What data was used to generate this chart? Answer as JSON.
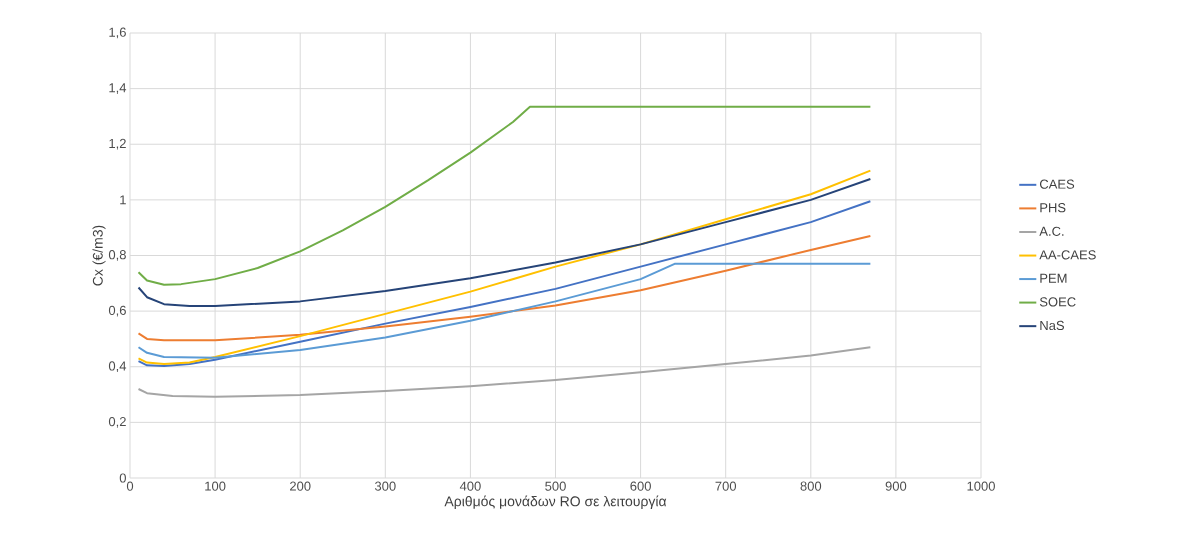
{
  "chart_data": {
    "type": "line",
    "xlabel": "Αριθμός μονάδων RO σε λειτουργία",
    "ylabel": "Cx  (€/m3)",
    "xlim": [
      0,
      1000
    ],
    "xticks": [
      0,
      100,
      200,
      300,
      400,
      500,
      600,
      700,
      800,
      900,
      1000
    ],
    "ylim": [
      0,
      1.6
    ],
    "yticks": [
      0,
      {
        "value": 0.2,
        "label": "0,2"
      },
      {
        "value": 0.4,
        "label": "0,4"
      },
      {
        "value": 0.6,
        "label": "0,6"
      },
      {
        "value": 0.8,
        "label": "0,8"
      },
      1,
      {
        "value": 1.2,
        "label": "1,2"
      },
      {
        "value": 1.4,
        "label": "1,4"
      },
      {
        "value": 1.6,
        "label": "1,6"
      }
    ],
    "grid": true,
    "legend": "right",
    "marker": "none",
    "line_style": "solid",
    "series": [
      {
        "name": "CAES",
        "color": "#4472c4",
        "x": [
          10,
          20,
          40,
          70,
          100,
          200,
          300,
          400,
          500,
          600,
          700,
          800,
          870
        ],
        "values": [
          0.42,
          0.405,
          0.403,
          0.41,
          0.425,
          0.49,
          0.555,
          0.615,
          0.68,
          0.76,
          0.84,
          0.92,
          0.995
        ]
      },
      {
        "name": "PHS",
        "color": "#ed7d31",
        "x": [
          10,
          20,
          40,
          100,
          200,
          300,
          400,
          500,
          600,
          700,
          800,
          870
        ],
        "values": [
          0.52,
          0.5,
          0.495,
          0.495,
          0.515,
          0.545,
          0.58,
          0.62,
          0.675,
          0.745,
          0.82,
          0.87
        ]
      },
      {
        "name": "A.C.",
        "color": "#a5a5a5",
        "x": [
          10,
          20,
          50,
          100,
          200,
          300,
          400,
          500,
          600,
          700,
          800,
          870
        ],
        "values": [
          0.32,
          0.305,
          0.295,
          0.292,
          0.298,
          0.313,
          0.33,
          0.352,
          0.38,
          0.41,
          0.44,
          0.47
        ]
      },
      {
        "name": "AA-CAES",
        "color": "#ffc000",
        "x": [
          10,
          20,
          40,
          70,
          100,
          200,
          300,
          400,
          500,
          600,
          700,
          800,
          870
        ],
        "values": [
          0.43,
          0.415,
          0.41,
          0.415,
          0.435,
          0.51,
          0.59,
          0.67,
          0.76,
          0.84,
          0.93,
          1.02,
          1.105
        ]
      },
      {
        "name": "PEM",
        "color": "#5b9bd5",
        "x": [
          10,
          20,
          40,
          100,
          200,
          300,
          400,
          500,
          600,
          640,
          870
        ],
        "values": [
          0.47,
          0.45,
          0.435,
          0.432,
          0.46,
          0.505,
          0.565,
          0.635,
          0.715,
          0.77,
          0.77
        ]
      },
      {
        "name": "SOEC",
        "color": "#70ad47",
        "x": [
          10,
          20,
          40,
          60,
          100,
          150,
          200,
          250,
          300,
          350,
          400,
          450,
          470,
          870
        ],
        "values": [
          0.74,
          0.71,
          0.695,
          0.697,
          0.715,
          0.755,
          0.815,
          0.89,
          0.975,
          1.07,
          1.17,
          1.28,
          1.335,
          1.335
        ]
      },
      {
        "name": "NaS",
        "color": "#264478",
        "x": [
          10,
          20,
          40,
          70,
          100,
          200,
          300,
          400,
          500,
          600,
          700,
          800,
          870
        ],
        "values": [
          0.685,
          0.65,
          0.625,
          0.618,
          0.618,
          0.635,
          0.672,
          0.718,
          0.775,
          0.84,
          0.92,
          1.0,
          1.075
        ]
      }
    ]
  }
}
